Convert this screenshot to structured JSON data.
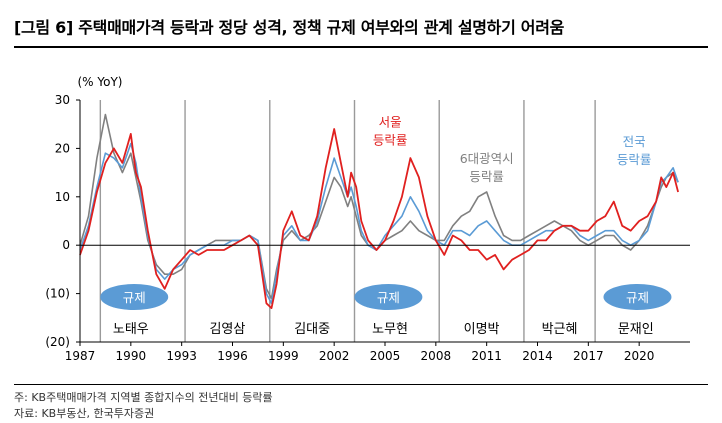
{
  "title": "[그림 6] 주택매매가격 등락과 정당 성격, 정책 규제 여부와의 관계 설명하기 어려움",
  "notes": {
    "source_note": "주: KB주택매매가격 지역별 종합지수의 전년대비 등락률",
    "source": "자료: KB부동산, 한국투자증권"
  },
  "chart_data": {
    "type": "line",
    "ylabel": "(% YoY)",
    "ylim": [
      -20,
      30
    ],
    "yticks": [
      30,
      20,
      10,
      0,
      -10,
      -20
    ],
    "ytick_labels": [
      "30",
      "20",
      "10",
      "0",
      "(10)",
      "(20)"
    ],
    "xlim": [
      1987,
      2023
    ],
    "xticks": [
      1987,
      1990,
      1993,
      1996,
      1999,
      2002,
      2005,
      2008,
      2011,
      2014,
      2017,
      2020
    ],
    "gridlines": false,
    "administration_dividers": [
      1988.2,
      1993.2,
      1998.2,
      2003.2,
      2008.2,
      2013.2,
      2017.4
    ],
    "administrations": [
      {
        "name": "노태우",
        "x": 1990.0
      },
      {
        "name": "김영삼",
        "x": 1995.7
      },
      {
        "name": "김대중",
        "x": 2000.7
      },
      {
        "name": "노무현",
        "x": 2005.3
      },
      {
        "name": "이명박",
        "x": 2010.7
      },
      {
        "name": "박근혜",
        "x": 2015.3
      },
      {
        "name": "문재인",
        "x": 2019.8
      }
    ],
    "regulation_badges": [
      {
        "label": "규제",
        "x": 1990.2
      },
      {
        "label": "규제",
        "x": 2005.2
      },
      {
        "label": "규제",
        "x": 2019.9
      }
    ],
    "series_labels": [
      {
        "text": [
          "서울",
          "등락률"
        ],
        "color": "#e0201f",
        "x": 2005.3,
        "y": 24.5
      },
      {
        "text": [
          "6대광역시",
          "등락률"
        ],
        "color": "#808080",
        "x": 2011.0,
        "y": 17.0
      },
      {
        "text": [
          "전국",
          "등락률"
        ],
        "color": "#5b9bd5",
        "x": 2019.7,
        "y": 20.5
      }
    ],
    "series": [
      {
        "key": "seoul",
        "color": "#e0201f",
        "x": [
          1987,
          1987.5,
          1988,
          1988.5,
          1989,
          1989.5,
          1990,
          1990.3,
          1990.6,
          1991,
          1991.5,
          1992,
          1992.5,
          1993,
          1993.5,
          1994,
          1994.5,
          1995,
          1995.5,
          1996,
          1996.5,
          1997,
          1997.5,
          1998,
          1998.3,
          1998.6,
          1999,
          1999.5,
          2000,
          2000.5,
          2001,
          2001.5,
          2002,
          2002.4,
          2002.8,
          2003,
          2003.3,
          2003.6,
          2004,
          2004.5,
          2005,
          2005.5,
          2006,
          2006.5,
          2007,
          2007.5,
          2008,
          2008.5,
          2009,
          2009.5,
          2010,
          2010.5,
          2011,
          2011.5,
          2012,
          2012.5,
          2013,
          2013.5,
          2014,
          2014.5,
          2015,
          2015.5,
          2016,
          2016.5,
          2017,
          2017.5,
          2018,
          2018.5,
          2019,
          2019.5,
          2020,
          2020.5,
          2021,
          2021.3,
          2021.6,
          2022,
          2022.3
        ],
        "values": [
          -2,
          3,
          11,
          17,
          20,
          17,
          23,
          15,
          12,
          3,
          -6,
          -9,
          -5,
          -3,
          -1,
          -2,
          -1,
          -1,
          -1,
          0,
          1,
          2,
          0,
          -12,
          -13,
          -8,
          3,
          7,
          2,
          1,
          6,
          16,
          24,
          17,
          10,
          15,
          12,
          5,
          1,
          -1,
          1,
          5,
          10,
          18,
          14,
          6,
          1,
          -2,
          2,
          1,
          -1,
          -1,
          -3,
          -2,
          -5,
          -3,
          -2,
          -1,
          1,
          1,
          3,
          4,
          4,
          3,
          3,
          5,
          6,
          9,
          4,
          3,
          5,
          6,
          9,
          14,
          12,
          15,
          11
        ]
      },
      {
        "key": "national",
        "color": "#5b9bd5",
        "x": [
          1987,
          1987.5,
          1988,
          1988.5,
          1989,
          1989.5,
          1990,
          1990.3,
          1990.6,
          1991,
          1991.5,
          1992,
          1992.5,
          1993,
          1993.5,
          1994,
          1994.5,
          1995,
          1995.5,
          1996,
          1996.5,
          1997,
          1997.5,
          1998,
          1998.3,
          1998.6,
          1999,
          1999.5,
          2000,
          2000.5,
          2001,
          2001.5,
          2002,
          2002.4,
          2002.8,
          2003,
          2003.3,
          2003.6,
          2004,
          2004.5,
          2005,
          2005.5,
          2006,
          2006.5,
          2007,
          2007.5,
          2008,
          2008.5,
          2009,
          2009.5,
          2010,
          2010.5,
          2011,
          2011.5,
          2012,
          2012.5,
          2013,
          2013.5,
          2014,
          2014.5,
          2015,
          2015.5,
          2016,
          2016.5,
          2017,
          2017.5,
          2018,
          2018.5,
          2019,
          2019.5,
          2020,
          2020.5,
          2021,
          2021.3,
          2021.6,
          2022,
          2022.3
        ],
        "values": [
          -1,
          4,
          12,
          19,
          18,
          16,
          21,
          17,
          10,
          2,
          -5,
          -7,
          -5,
          -4,
          -2,
          -1,
          0,
          0,
          0,
          1,
          1,
          2,
          1,
          -10,
          -12,
          -6,
          2,
          4,
          1,
          1,
          5,
          12,
          18,
          14,
          10,
          12,
          8,
          3,
          0,
          -1,
          2,
          4,
          6,
          10,
          7,
          3,
          1,
          0,
          3,
          3,
          2,
          4,
          5,
          3,
          1,
          0,
          0,
          1,
          2,
          3,
          3,
          4,
          4,
          2,
          1,
          2,
          3,
          3,
          1,
          0,
          1,
          3,
          9,
          13,
          14,
          16,
          13
        ]
      },
      {
        "key": "metro6",
        "color": "#808080",
        "x": [
          1987,
          1987.5,
          1988,
          1988.5,
          1989,
          1989.5,
          1990,
          1990.3,
          1990.6,
          1991,
          1991.5,
          1992,
          1992.5,
          1993,
          1993.5,
          1994,
          1994.5,
          1995,
          1995.5,
          1996,
          1996.5,
          1997,
          1997.5,
          1998,
          1998.3,
          1998.6,
          1999,
          1999.5,
          2000,
          2000.5,
          2001,
          2001.5,
          2002,
          2002.4,
          2002.8,
          2003,
          2003.3,
          2003.6,
          2004,
          2004.5,
          2005,
          2005.5,
          2006,
          2006.5,
          2007,
          2007.5,
          2008,
          2008.5,
          2009,
          2009.5,
          2010,
          2010.5,
          2011,
          2011.5,
          2012,
          2012.5,
          2013,
          2013.5,
          2014,
          2014.5,
          2015,
          2015.5,
          2016,
          2016.5,
          2017,
          2017.5,
          2018,
          2018.5,
          2019,
          2019.5,
          2020,
          2020.5,
          2021,
          2021.3,
          2021.6,
          2022,
          2022.3
        ],
        "values": [
          0,
          6,
          18,
          27,
          19,
          15,
          19,
          14,
          9,
          1,
          -4,
          -6,
          -6,
          -5,
          -2,
          -1,
          0,
          1,
          1,
          1,
          1,
          2,
          1,
          -9,
          -11,
          -5,
          1,
          3,
          1,
          2,
          4,
          9,
          14,
          12,
          8,
          10,
          6,
          2,
          0,
          -1,
          1,
          2,
          3,
          5,
          3,
          2,
          1,
          1,
          4,
          6,
          7,
          10,
          11,
          6,
          2,
          1,
          1,
          2,
          3,
          4,
          5,
          4,
          3,
          1,
          0,
          1,
          2,
          2,
          0,
          -1,
          1,
          4,
          9,
          12,
          14,
          15,
          13
        ]
      }
    ]
  }
}
